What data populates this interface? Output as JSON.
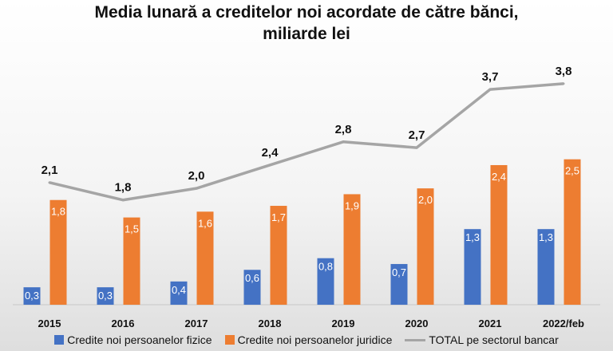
{
  "chart_data": {
    "type": "bar",
    "title_line1": "Media lunară a creditelor noi acordate de către bănci,",
    "title_line2": "miliarde lei",
    "categories": [
      "2015",
      "2016",
      "2017",
      "2018",
      "2019",
      "2020",
      "2021",
      "2022/feb"
    ],
    "series": [
      {
        "name": "Credite noi persoanelor fizice",
        "type": "bar",
        "color": "#4472C4",
        "values": [
          0.3,
          0.3,
          0.4,
          0.6,
          0.8,
          0.7,
          1.3,
          1.3
        ],
        "labels": [
          "0,3",
          "0,3",
          "0,4",
          "0,6",
          "0,8",
          "0,7",
          "1,3",
          "1,3"
        ]
      },
      {
        "name": "Credite noi persoanelor juridice",
        "type": "bar",
        "color": "#ED7D31",
        "values": [
          1.8,
          1.5,
          1.6,
          1.7,
          1.9,
          2.0,
          2.4,
          2.5
        ],
        "labels": [
          "1,8",
          "1,5",
          "1,6",
          "1,7",
          "1,9",
          "2,0",
          "2,4",
          "2,5"
        ]
      },
      {
        "name": "TOTAL pe sectorul bancar",
        "type": "line",
        "color": "#A5A5A5",
        "values": [
          2.1,
          1.8,
          2.0,
          2.4,
          2.8,
          2.7,
          3.7,
          3.8
        ],
        "labels": [
          "2,1",
          "1,8",
          "2,0",
          "2,4",
          "2,8",
          "2,7",
          "3,7",
          "3,8"
        ]
      }
    ],
    "xlabel": "",
    "ylabel": "",
    "ylim": [
      0,
      4.1
    ],
    "grid": false,
    "legend_position": "bottom"
  }
}
